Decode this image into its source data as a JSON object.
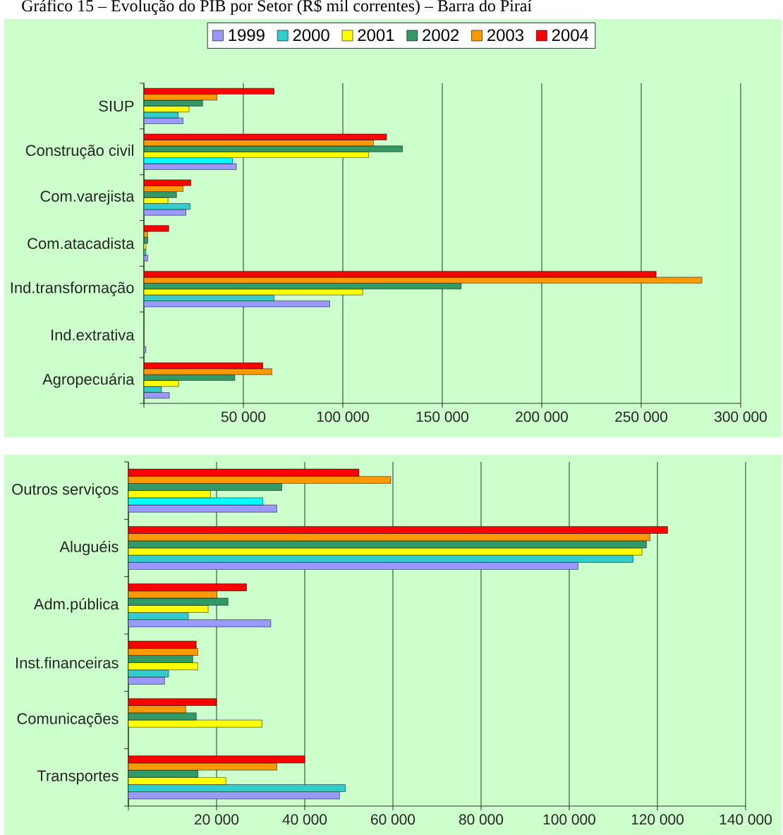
{
  "chart_data": [
    {
      "type": "bar",
      "orientation": "horizontal",
      "title": "Gráfico 15 – Evolução do PIB por Setor (R$ mil correntes) – Barra do Piraí",
      "categories": [
        "SIUP",
        "Construção civil",
        "Com.varejista",
        "Com.atacadista",
        "Ind.transformação",
        "Ind.extrativa",
        "Agropecuária"
      ],
      "series": [
        {
          "name": "1999",
          "color": "#9999ff",
          "values": [
            19700,
            46500,
            21100,
            2000,
            93500,
            1000,
            12800
          ]
        },
        {
          "name": "2000",
          "color": "#33cccc",
          "colors": [
            null,
            "#00ffff",
            null,
            null,
            null,
            null,
            null
          ],
          "values": [
            17200,
            44500,
            23200,
            1000,
            65500,
            null,
            8800
          ]
        },
        {
          "name": "2001",
          "color": "#ffff00",
          "values": [
            22700,
            113000,
            12100,
            1000,
            110000,
            null,
            17600
          ]
        },
        {
          "name": "2002",
          "color": "#339966",
          "values": [
            29500,
            130000,
            16400,
            2000,
            159500,
            null,
            45700
          ]
        },
        {
          "name": "2003",
          "color": "#ff9900",
          "values": [
            36700,
            115500,
            19700,
            2000,
            280500,
            null,
            64300
          ]
        },
        {
          "name": "2004",
          "color": "#ff0000",
          "values": [
            65500,
            122000,
            23600,
            12500,
            257500,
            null,
            59800
          ]
        }
      ],
      "xlim": [
        0,
        300000
      ],
      "xticks": [
        {
          "value": 0,
          "label": null
        },
        {
          "value": 50000,
          "label": "50 000"
        },
        {
          "value": 100000,
          "label": "100 000"
        },
        {
          "value": 150000,
          "label": "150 000"
        },
        {
          "value": 200000,
          "label": "200 000"
        },
        {
          "value": 250000,
          "label": "250 000"
        },
        {
          "value": 300000,
          "label": "300 000"
        }
      ],
      "grid": "x",
      "legend": "top"
    },
    {
      "type": "bar",
      "orientation": "horizontal",
      "categories": [
        "Outros serviços",
        "Aluguéis",
        "Adm.pública",
        "Inst.financeiras",
        "Comunicações",
        "Transportes"
      ],
      "series": [
        {
          "color": "#9999ff",
          "values": [
            33700,
            102000,
            32300,
            8200,
            null,
            47900
          ]
        },
        {
          "color": "#33cccc",
          "colors": [
            "#00ffff",
            null,
            null,
            null,
            null,
            null
          ],
          "values": [
            30500,
            114500,
            13600,
            9100,
            null,
            49200
          ]
        },
        {
          "color": "#ffff00",
          "values": [
            18600,
            116500,
            18100,
            15800,
            30300,
            22100
          ]
        },
        {
          "color": "#339966",
          "values": [
            34800,
            117500,
            22600,
            14600,
            15400,
            15800
          ]
        },
        {
          "color": "#ff9900",
          "values": [
            59500,
            118300,
            20100,
            15800,
            13000,
            33700
          ]
        },
        {
          "color": "#ff0000",
          "values": [
            52300,
            122300,
            26800,
            15400,
            20000,
            40000
          ]
        }
      ],
      "xlim": [
        0,
        140000
      ],
      "xticks": [
        {
          "value": 0,
          "label": null
        },
        {
          "value": 20000,
          "label": "20 000"
        },
        {
          "value": 40000,
          "label": "40 000"
        },
        {
          "value": 60000,
          "label": "60 000"
        },
        {
          "value": 80000,
          "label": "80 000"
        },
        {
          "value": 100000,
          "label": "100 000"
        },
        {
          "value": 120000,
          "label": "120 000"
        },
        {
          "value": 140000,
          "label": "140 000"
        }
      ],
      "grid": "x"
    }
  ]
}
